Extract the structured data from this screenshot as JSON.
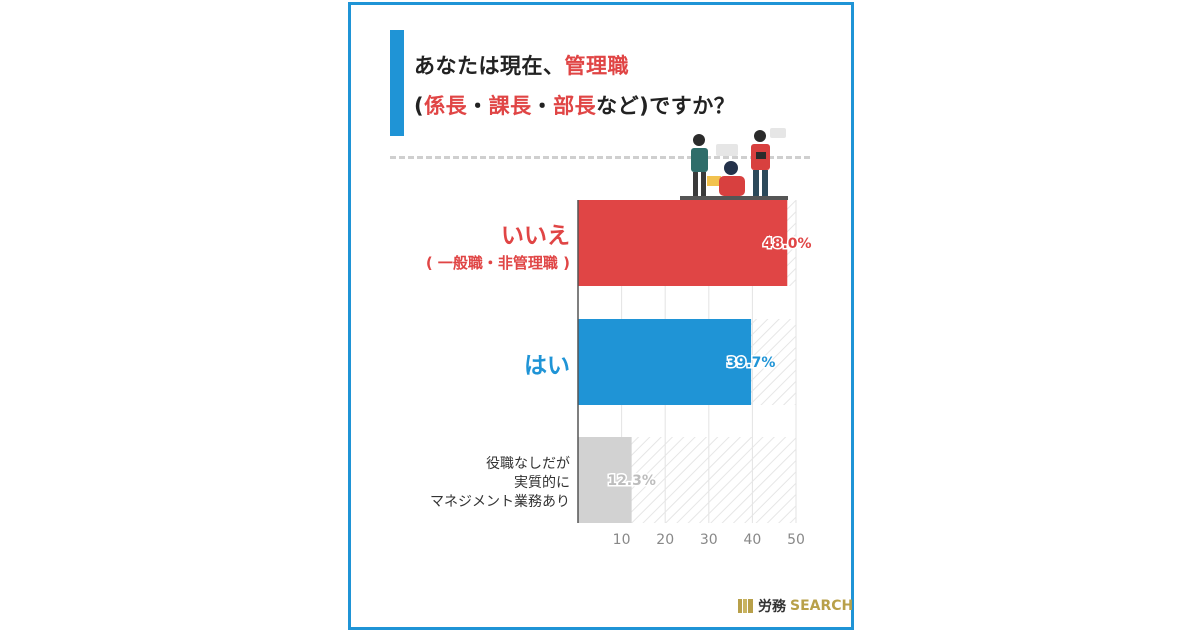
{
  "title": {
    "line1_prefix": "あなたは現在、",
    "line1_highlight": "管理職",
    "line2_open": "(",
    "line2_highlight1": "係長",
    "line2_sep1": "・",
    "line2_highlight2": "課長",
    "line2_sep2": "・",
    "line2_highlight3": "部長",
    "line2_suffix": "など)ですか？"
  },
  "chart_data": {
    "type": "bar",
    "orientation": "horizontal",
    "categories": [
      "いいえ( 一般職・非管理職 )",
      "はい",
      "役職なしだが実質的にマネジメント業務あり"
    ],
    "category_lines": [
      [
        "いいえ",
        "( 一般職・非管理職 )"
      ],
      [
        "はい"
      ],
      [
        "役職なしだが",
        "実質的に",
        "マネジメント業務あり"
      ]
    ],
    "values": [
      48.0,
      39.7,
      12.3
    ],
    "value_labels": [
      "48.0%",
      "39.7%",
      "12.3%"
    ],
    "colors": [
      "#e04545",
      "#1f94d6",
      "#d2d2d2"
    ],
    "label_colors": [
      "#e04545",
      "#1f94d6",
      "#bdbdbd"
    ],
    "xlim": [
      0,
      50
    ],
    "x_ticks": [
      10,
      20,
      30,
      40,
      50
    ],
    "grid": true
  },
  "logo": {
    "jp": "労務",
    "en": "SEARCH",
    "accent_color": "#b8a04a"
  },
  "colors": {
    "frame": "#1f94d6",
    "accent_red": "#e04545",
    "accent_blue": "#1f94d6"
  },
  "illustration": {
    "name": "office-people-illustration"
  }
}
